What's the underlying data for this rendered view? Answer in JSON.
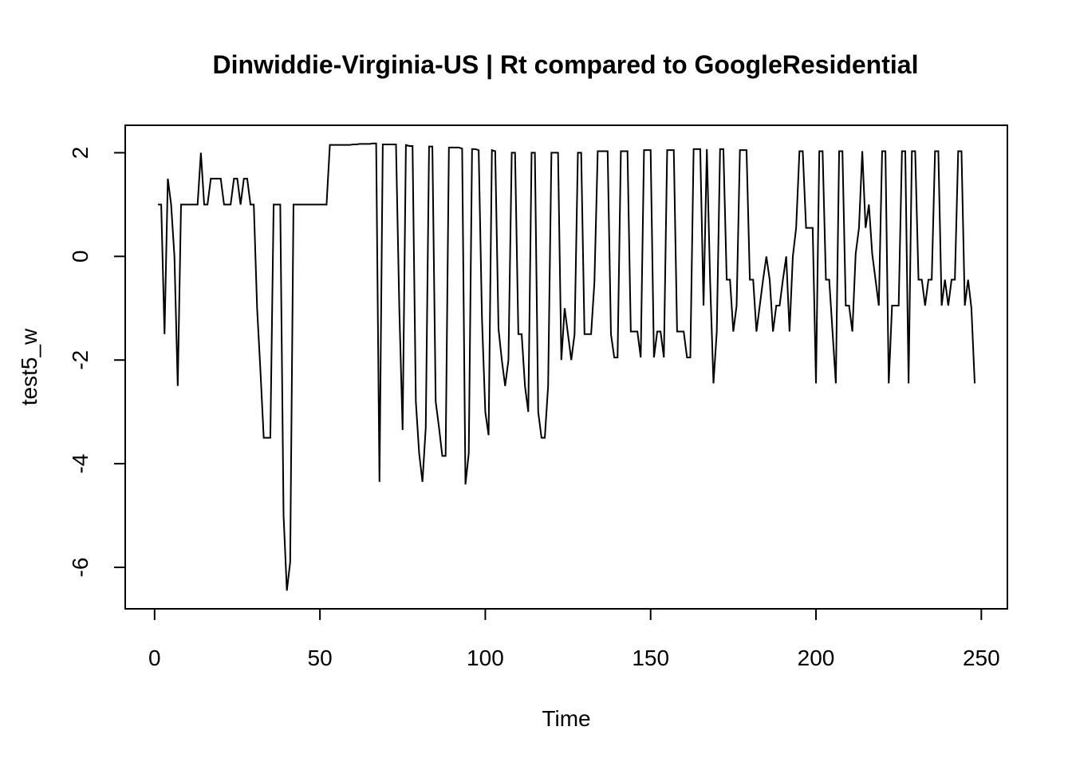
{
  "chart_data": {
    "type": "line",
    "title": "Dinwiddie-Virginia-US | Rt compared to GoogleResidential",
    "xlabel": "Time",
    "ylabel": "test5_w",
    "color": "#000000",
    "xlim": [
      -8.88,
      257.88
    ],
    "ylim": [
      -6.8,
      2.53
    ],
    "xticks": [
      0,
      50,
      100,
      150,
      200,
      250
    ],
    "yticks": [
      -6,
      -4,
      -2,
      0,
      2
    ],
    "x": [
      1,
      2,
      3,
      4,
      5,
      6,
      7,
      8,
      9,
      10,
      11,
      12,
      13,
      14,
      15,
      16,
      17,
      18,
      19,
      20,
      21,
      22,
      23,
      24,
      25,
      26,
      27,
      28,
      29,
      30,
      31,
      32,
      33,
      34,
      35,
      36,
      37,
      38,
      39,
      40,
      41,
      42,
      43,
      44,
      45,
      46,
      47,
      48,
      49,
      50,
      51,
      52,
      53,
      54,
      55,
      56,
      57,
      58,
      59,
      60,
      61,
      62,
      63,
      64,
      65,
      66,
      67,
      68,
      69,
      70,
      71,
      72,
      73,
      74,
      75,
      76,
      77,
      78,
      79,
      80,
      81,
      82,
      83,
      84,
      85,
      86,
      87,
      88,
      89,
      90,
      91,
      92,
      93,
      94,
      95,
      96,
      97,
      98,
      99,
      100,
      101,
      102,
      103,
      104,
      105,
      106,
      107,
      108,
      109,
      110,
      111,
      112,
      113,
      114,
      115,
      116,
      117,
      118,
      119,
      120,
      121,
      122,
      123,
      124,
      125,
      126,
      127,
      128,
      129,
      130,
      131,
      132,
      133,
      134,
      135,
      136,
      137,
      138,
      139,
      140,
      141,
      142,
      143,
      144,
      145,
      146,
      147,
      148,
      149,
      150,
      151,
      152,
      153,
      154,
      155,
      156,
      157,
      158,
      159,
      160,
      161,
      162,
      163,
      164,
      165,
      166,
      167,
      168,
      169,
      170,
      171,
      172,
      173,
      174,
      175,
      176,
      177,
      178,
      179,
      180,
      181,
      182,
      183,
      184,
      185,
      186,
      187,
      188,
      189,
      190,
      191,
      192,
      193,
      194,
      195,
      196,
      197,
      198,
      199,
      200,
      201,
      202,
      203,
      204,
      205,
      206,
      207,
      208,
      209,
      210,
      211,
      212,
      213,
      214,
      215,
      216,
      217,
      218,
      219,
      220,
      221,
      222,
      223,
      224,
      225,
      226,
      227,
      228,
      229,
      230,
      231,
      232,
      233,
      234,
      235,
      236,
      237,
      238,
      239,
      240,
      241,
      242,
      243,
      244,
      245,
      246,
      247,
      248
    ],
    "values": [
      1,
      1,
      -1.5,
      1.5,
      1,
      0,
      -2.5,
      1,
      1,
      1,
      1,
      1,
      1,
      2,
      1,
      1,
      1.5,
      1.5,
      1.5,
      1.5,
      1,
      1,
      1,
      1.5,
      1.5,
      1,
      1.5,
      1.5,
      1,
      1,
      -1,
      -2.2,
      -3.5,
      -3.5,
      -3.5,
      1,
      1,
      1,
      -5,
      -6.45,
      -5.9,
      1,
      1,
      1,
      1,
      1,
      1,
      1,
      1,
      1,
      1,
      1,
      2.15,
      2.15,
      2.15,
      2.15,
      2.15,
      2.15,
      2.15,
      2.16,
      2.16,
      2.17,
      2.17,
      2.17,
      2.17,
      2.18,
      2.18,
      -4.35,
      2.16,
      2.16,
      2.16,
      2.16,
      2.16,
      -1,
      -3.35,
      2.15,
      2.13,
      2.13,
      -2.8,
      -3.8,
      -4.35,
      -3.3,
      2.12,
      2.12,
      -2.8,
      -3.3,
      -3.85,
      -3.85,
      2.1,
      2.1,
      2.1,
      2.1,
      2.08,
      -4.4,
      -3.8,
      2.07,
      2.07,
      2.05,
      -1.2,
      -3,
      -3.45,
      2.05,
      2.03,
      -1.4,
      -2,
      -2.5,
      -2,
      2,
      2,
      -1.5,
      -1.5,
      -2.5,
      -3,
      2,
      2,
      -3,
      -3.5,
      -3.5,
      -2.5,
      2,
      2,
      2,
      -2,
      -1,
      -1.5,
      -2,
      -1.5,
      2,
      2,
      -1.5,
      -1.5,
      -1.5,
      -0.5,
      2.03,
      2.03,
      2.03,
      2.03,
      -1.5,
      -1.95,
      -1.95,
      2.03,
      2.03,
      2.03,
      -1.45,
      -1.45,
      -1.45,
      -1.95,
      2.05,
      2.05,
      2.05,
      -1.95,
      -1.45,
      -1.45,
      -1.95,
      2.05,
      2.05,
      2.05,
      -1.45,
      -1.45,
      -1.45,
      -1.95,
      -1.95,
      2.07,
      2.07,
      2.07,
      -0.95,
      2.07,
      -0.5,
      -2.45,
      -1.45,
      2.07,
      2.07,
      -0.45,
      -0.45,
      -1.45,
      -0.95,
      2.05,
      2.05,
      2.05,
      -0.45,
      -0.45,
      -1.45,
      -0.95,
      -0.45,
      0,
      -0.45,
      -1.45,
      -0.95,
      -0.95,
      -0.45,
      0,
      -1.45,
      0,
      0.55,
      2.03,
      2.03,
      0.55,
      0.55,
      0.55,
      -2.45,
      2.03,
      2.03,
      -0.45,
      -0.45,
      -1.45,
      -2.45,
      2.03,
      2.03,
      -0.95,
      -0.95,
      -1.45,
      0.05,
      0.55,
      2.03,
      0.55,
      1,
      0.05,
      -0.45,
      -0.95,
      2.03,
      2.03,
      -2.45,
      -0.95,
      -0.95,
      -0.95,
      2.03,
      2.03,
      -2.45,
      2.03,
      2.03,
      -0.45,
      -0.45,
      -0.95,
      -0.45,
      -0.45,
      2.03,
      2.03,
      -0.95,
      -0.45,
      -0.95,
      -0.45,
      -0.45,
      2.03,
      2.03,
      -0.95,
      -0.45,
      -1,
      -2.45
    ]
  }
}
